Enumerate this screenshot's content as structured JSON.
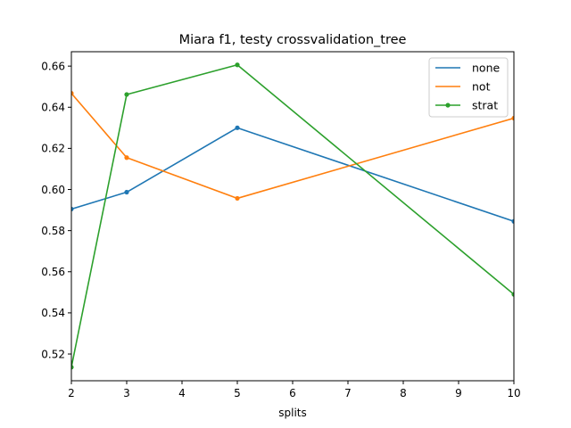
{
  "chart_data": {
    "type": "line",
    "title": "Miara f1, testy crossvalidation_tree",
    "xlabel": "splits",
    "ylabel": "",
    "xlim": [
      2,
      10
    ],
    "ylim": [
      0.507,
      0.667
    ],
    "xticks": [
      2,
      3,
      4,
      5,
      6,
      7,
      8,
      9,
      10
    ],
    "yticks": [
      "0.52",
      "0.54",
      "0.56",
      "0.58",
      "0.60",
      "0.62",
      "0.64",
      "0.66"
    ],
    "x": [
      2,
      3,
      5,
      10
    ],
    "series": [
      {
        "name": "none",
        "color": "#1f77b4",
        "marker": "point",
        "values": [
          0.5905,
          0.5987,
          0.63,
          0.5845
        ]
      },
      {
        "name": "not",
        "color": "#ff7f0e",
        "marker": "point",
        "values": [
          0.6468,
          0.6155,
          0.5957,
          0.6347
        ]
      },
      {
        "name": "strat",
        "color": "#2ca02c",
        "marker": "point",
        "values": [
          0.5136,
          0.6462,
          0.6606,
          0.549
        ]
      }
    ],
    "legend": {
      "placement": "top-right",
      "entries": [
        {
          "label": "none",
          "color": "#1f77b4",
          "marker": false
        },
        {
          "label": "not",
          "color": "#ff7f0e",
          "marker": false
        },
        {
          "label": "strat",
          "color": "#2ca02c",
          "marker": true
        }
      ]
    },
    "grid": false
  }
}
